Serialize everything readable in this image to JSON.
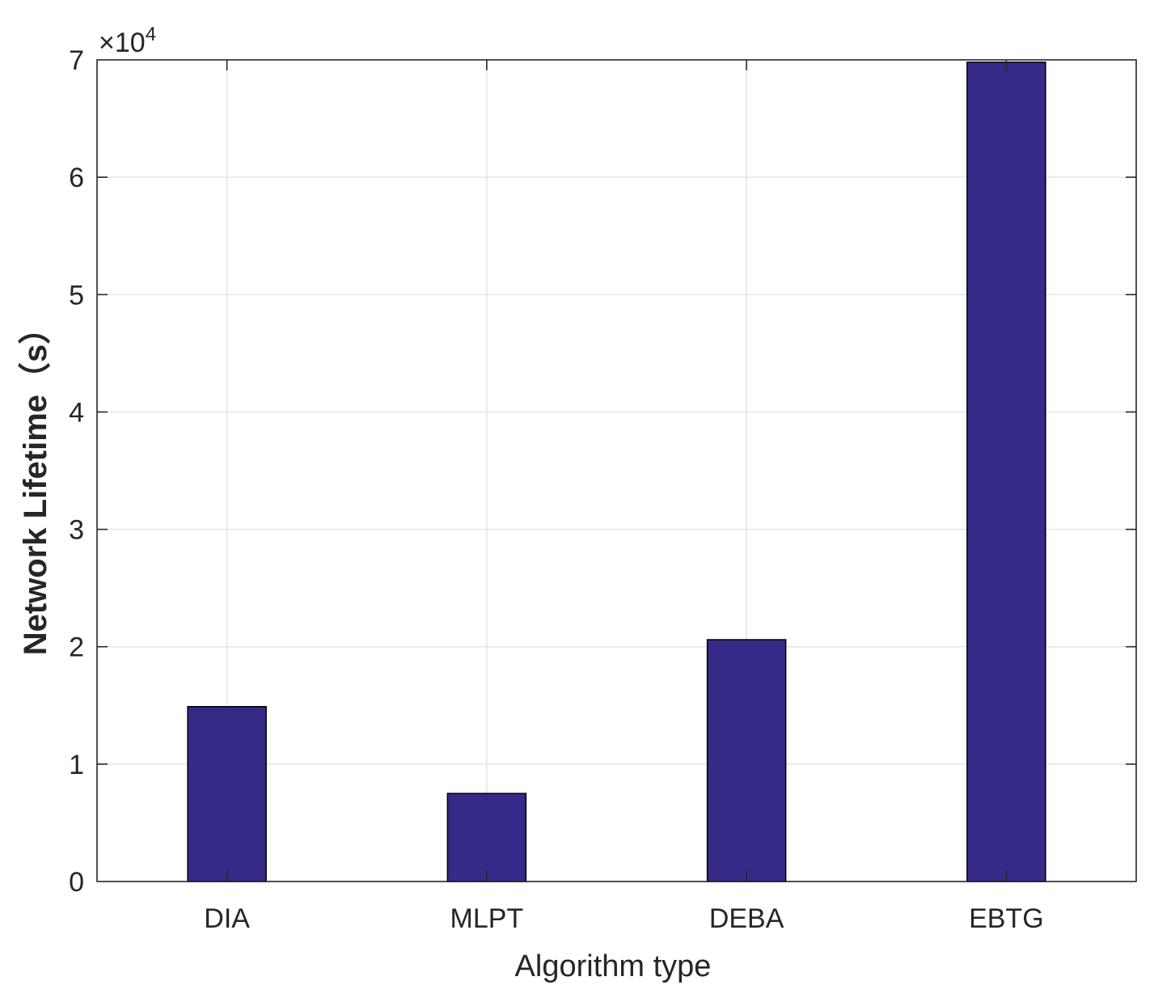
{
  "chart_data": {
    "type": "bar",
    "categories": [
      "DIA",
      "MLPT",
      "DEBA",
      "EBTG"
    ],
    "values": [
      14900,
      7500,
      20600,
      69800
    ],
    "xlabel": "Algorithm type",
    "ylabel": "Network Lifetime（s）",
    "ylim": [
      0,
      70000
    ],
    "yticks": [
      0,
      1,
      2,
      3,
      4,
      5,
      6,
      7
    ],
    "ytick_labels": [
      "0",
      "1",
      "2",
      "3",
      "4",
      "5",
      "6",
      "7"
    ],
    "y_multiplier": {
      "base": "×10",
      "exponent": "4"
    },
    "grid": true,
    "bar_color": "#352a87",
    "bar_edge_color": "#000000"
  }
}
